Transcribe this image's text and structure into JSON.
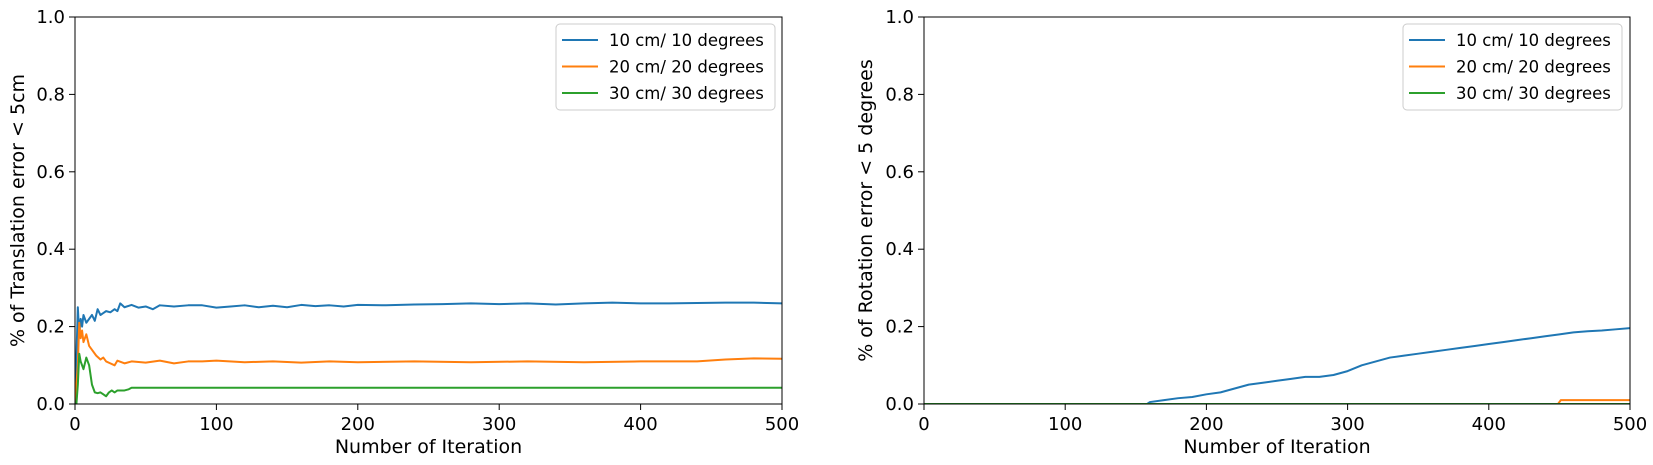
{
  "chart_data": [
    {
      "type": "line",
      "title": "",
      "xlabel": "Number of Iteration",
      "ylabel": "% of Translation error < 5cm",
      "xlim": [
        0,
        500
      ],
      "ylim": [
        0,
        1.0
      ],
      "xticks": [
        "0",
        "100",
        "200",
        "300",
        "400",
        "500"
      ],
      "yticks": [
        "0.0",
        "0.2",
        "0.4",
        "0.6",
        "0.8",
        "1.0"
      ],
      "legend": "top-right",
      "grid": false,
      "series": [
        {
          "name": "10 cm/ 10 degrees",
          "color": "#1f77b4",
          "points": [
            [
              0,
              0
            ],
            [
              1,
              0.12
            ],
            [
              2,
              0.25
            ],
            [
              3,
              0.18
            ],
            [
              4,
              0.22
            ],
            [
              5,
              0.2
            ],
            [
              6,
              0.23
            ],
            [
              8,
              0.21
            ],
            [
              10,
              0.22
            ],
            [
              12,
              0.23
            ],
            [
              14,
              0.215
            ],
            [
              16,
              0.245
            ],
            [
              18,
              0.23
            ],
            [
              20,
              0.235
            ],
            [
              22,
              0.24
            ],
            [
              25,
              0.237
            ],
            [
              28,
              0.245
            ],
            [
              30,
              0.24
            ],
            [
              32,
              0.26
            ],
            [
              35,
              0.25
            ],
            [
              40,
              0.256
            ],
            [
              45,
              0.249
            ],
            [
              50,
              0.252
            ],
            [
              55,
              0.245
            ],
            [
              60,
              0.255
            ],
            [
              70,
              0.252
            ],
            [
              80,
              0.255
            ],
            [
              90,
              0.255
            ],
            [
              100,
              0.249
            ],
            [
              110,
              0.252
            ],
            [
              120,
              0.255
            ],
            [
              130,
              0.25
            ],
            [
              140,
              0.254
            ],
            [
              150,
              0.25
            ],
            [
              160,
              0.256
            ],
            [
              170,
              0.253
            ],
            [
              180,
              0.255
            ],
            [
              190,
              0.252
            ],
            [
              200,
              0.256
            ],
            [
              220,
              0.255
            ],
            [
              240,
              0.257
            ],
            [
              260,
              0.258
            ],
            [
              280,
              0.26
            ],
            [
              300,
              0.258
            ],
            [
              320,
              0.26
            ],
            [
              340,
              0.257
            ],
            [
              360,
              0.26
            ],
            [
              380,
              0.262
            ],
            [
              400,
              0.26
            ],
            [
              420,
              0.26
            ],
            [
              440,
              0.261
            ],
            [
              460,
              0.262
            ],
            [
              480,
              0.262
            ],
            [
              500,
              0.26
            ]
          ]
        },
        {
          "name": "20 cm/ 20 degrees",
          "color": "#ff7f0e",
          "points": [
            [
              0,
              0
            ],
            [
              1,
              0.05
            ],
            [
              2,
              0.1
            ],
            [
              3,
              0.21
            ],
            [
              4,
              0.17
            ],
            [
              5,
              0.19
            ],
            [
              6,
              0.16
            ],
            [
              8,
              0.18
            ],
            [
              10,
              0.15
            ],
            [
              12,
              0.14
            ],
            [
              15,
              0.125
            ],
            [
              18,
              0.115
            ],
            [
              20,
              0.12
            ],
            [
              22,
              0.11
            ],
            [
              25,
              0.105
            ],
            [
              28,
              0.1
            ],
            [
              30,
              0.112
            ],
            [
              35,
              0.105
            ],
            [
              40,
              0.11
            ],
            [
              50,
              0.107
            ],
            [
              60,
              0.112
            ],
            [
              70,
              0.105
            ],
            [
              80,
              0.11
            ],
            [
              90,
              0.11
            ],
            [
              100,
              0.112
            ],
            [
              120,
              0.108
            ],
            [
              140,
              0.11
            ],
            [
              160,
              0.107
            ],
            [
              180,
              0.11
            ],
            [
              200,
              0.108
            ],
            [
              240,
              0.11
            ],
            [
              280,
              0.108
            ],
            [
              320,
              0.11
            ],
            [
              360,
              0.108
            ],
            [
              400,
              0.11
            ],
            [
              440,
              0.11
            ],
            [
              460,
              0.115
            ],
            [
              480,
              0.118
            ],
            [
              500,
              0.117
            ]
          ]
        },
        {
          "name": "30 cm/ 30 degrees",
          "color": "#2ca02c",
          "points": [
            [
              0,
              0
            ],
            [
              1,
              0
            ],
            [
              2,
              0.05
            ],
            [
              3,
              0.13
            ],
            [
              4,
              0.11
            ],
            [
              5,
              0.1
            ],
            [
              6,
              0.09
            ],
            [
              8,
              0.12
            ],
            [
              10,
              0.1
            ],
            [
              12,
              0.05
            ],
            [
              14,
              0.03
            ],
            [
              16,
              0.028
            ],
            [
              18,
              0.03
            ],
            [
              20,
              0.025
            ],
            [
              22,
              0.02
            ],
            [
              24,
              0.03
            ],
            [
              26,
              0.035
            ],
            [
              28,
              0.03
            ],
            [
              30,
              0.035
            ],
            [
              35,
              0.035
            ],
            [
              38,
              0.038
            ],
            [
              40,
              0.042
            ],
            [
              500,
              0.042
            ]
          ]
        }
      ]
    },
    {
      "type": "line",
      "title": "",
      "xlabel": "Number of Iteration",
      "ylabel": "% of Rotation error < 5 degrees",
      "xlim": [
        0,
        500
      ],
      "ylim": [
        0,
        1.0
      ],
      "xticks": [
        "0",
        "100",
        "200",
        "300",
        "400",
        "500"
      ],
      "yticks": [
        "0.0",
        "0.2",
        "0.4",
        "0.6",
        "0.8",
        "1.0"
      ],
      "legend": "top-right",
      "grid": false,
      "series": [
        {
          "name": "10 cm/ 10 degrees",
          "color": "#1f77b4",
          "points": [
            [
              0,
              0
            ],
            [
              158,
              0
            ],
            [
              160,
              0.005
            ],
            [
              170,
              0.01
            ],
            [
              180,
              0.015
            ],
            [
              190,
              0.018
            ],
            [
              200,
              0.025
            ],
            [
              210,
              0.03
            ],
            [
              220,
              0.04
            ],
            [
              230,
              0.05
            ],
            [
              240,
              0.055
            ],
            [
              250,
              0.06
            ],
            [
              260,
              0.065
            ],
            [
              270,
              0.07
            ],
            [
              280,
              0.07
            ],
            [
              290,
              0.075
            ],
            [
              300,
              0.085
            ],
            [
              310,
              0.1
            ],
            [
              320,
              0.11
            ],
            [
              330,
              0.12
            ],
            [
              340,
              0.125
            ],
            [
              350,
              0.13
            ],
            [
              360,
              0.135
            ],
            [
              370,
              0.14
            ],
            [
              380,
              0.145
            ],
            [
              390,
              0.15
            ],
            [
              400,
              0.155
            ],
            [
              410,
              0.16
            ],
            [
              420,
              0.165
            ],
            [
              430,
              0.17
            ],
            [
              440,
              0.175
            ],
            [
              450,
              0.18
            ],
            [
              460,
              0.185
            ],
            [
              470,
              0.188
            ],
            [
              480,
              0.19
            ],
            [
              490,
              0.193
            ],
            [
              500,
              0.196
            ]
          ]
        },
        {
          "name": "20 cm/ 20 degrees",
          "color": "#ff7f0e",
          "points": [
            [
              0,
              0
            ],
            [
              449,
              0
            ],
            [
              451,
              0.01
            ],
            [
              500,
              0.01
            ]
          ]
        },
        {
          "name": "30 cm/ 30 degrees",
          "color": "#2ca02c",
          "points": [
            [
              0,
              0
            ],
            [
              500,
              0
            ]
          ]
        }
      ]
    }
  ]
}
